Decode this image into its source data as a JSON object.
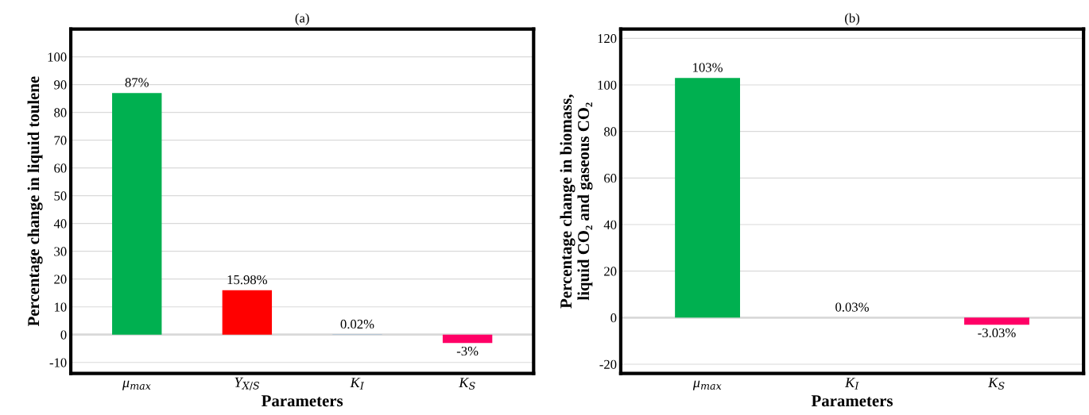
{
  "chart_data": [
    {
      "type": "bar",
      "title": "(a)",
      "xlabel": "Parameters",
      "ylabel": "Percentage change in liquid toulene",
      "categories": [
        "μ$_{max}$",
        "Y$_{X/S}$",
        "K$_{I}$",
        "K$_{S}$"
      ],
      "values": [
        87,
        15.98,
        0.02,
        -3
      ],
      "colors": [
        "#00b050",
        "#ff0000",
        "#5b9bd5",
        "#ff0066"
      ],
      "value_labels": [
        "87%",
        "15.98%",
        "0.02%",
        "-3%"
      ],
      "ylim": [
        -14,
        110
      ],
      "yticks": [
        -10,
        0,
        10,
        20,
        30,
        40,
        50,
        60,
        70,
        80,
        90,
        100
      ],
      "grid": "y",
      "legend": false
    },
    {
      "type": "bar",
      "title": "(b)",
      "xlabel": "Parameters",
      "ylabel": "Percentage change in biomass,\nliquid CO₂ and gaseous CO₂",
      "categories": [
        "μ$_{max}$",
        "K$_{I}$",
        "K$_{S}$"
      ],
      "values": [
        103,
        0.03,
        -3.03
      ],
      "colors": [
        "#00b050",
        "#5b9bd5",
        "#ff0066"
      ],
      "value_labels": [
        "103%",
        "0.03%",
        "-3.03%"
      ],
      "ylim": [
        -24,
        124
      ],
      "yticks": [
        -20,
        0,
        20,
        40,
        60,
        80,
        100,
        120
      ],
      "grid": "y",
      "legend": false
    }
  ]
}
